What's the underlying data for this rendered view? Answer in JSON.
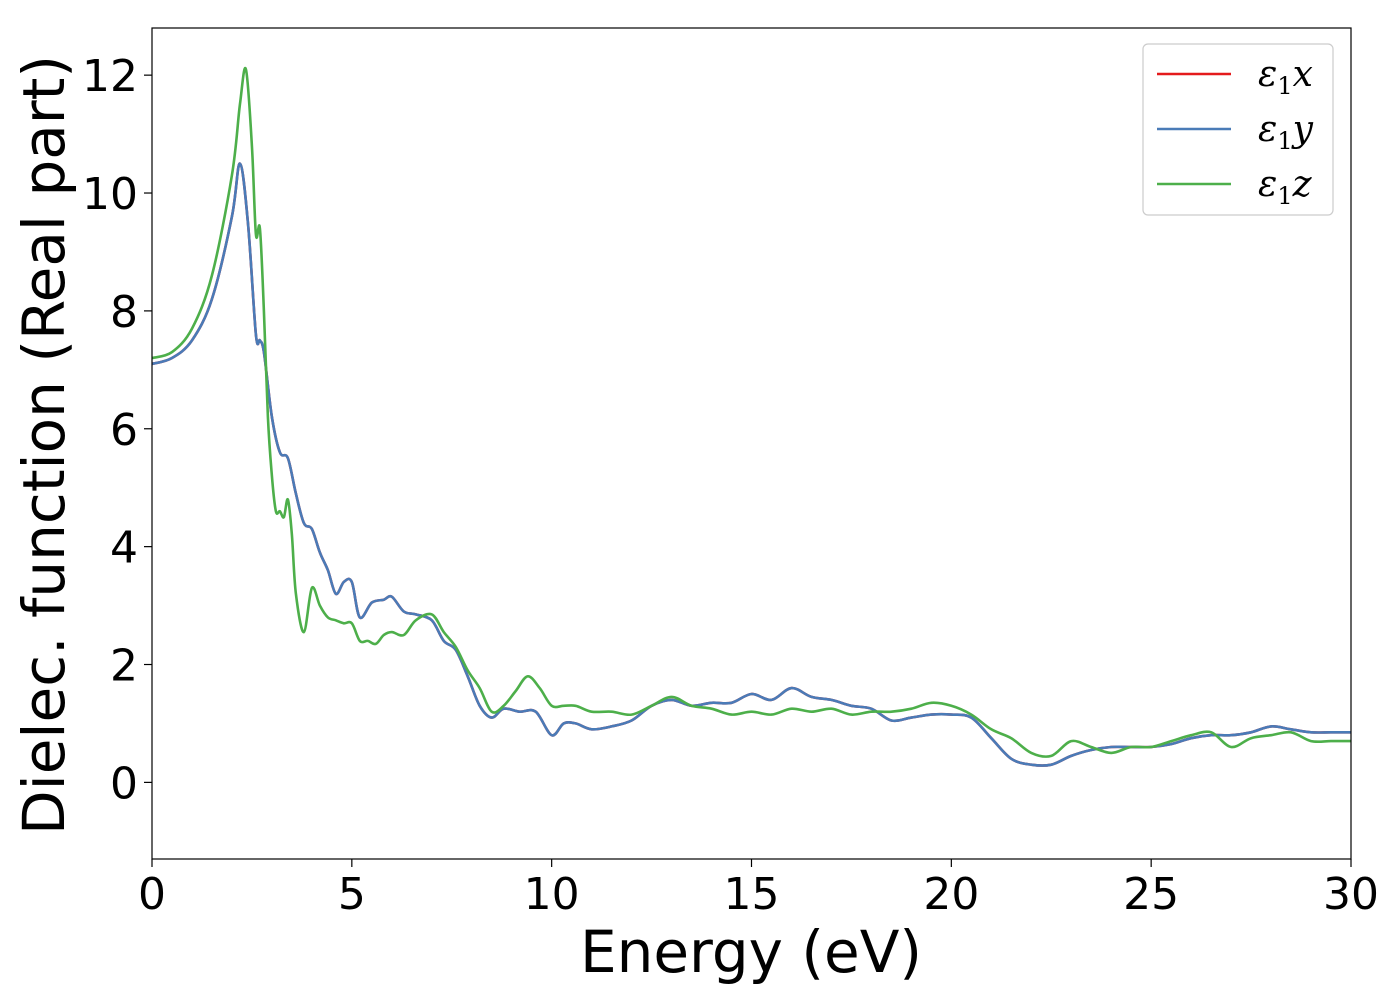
{
  "chart_data": {
    "type": "line",
    "title": "",
    "xlabel": "Energy (eV)",
    "ylabel": "Dielec. function (Real part)",
    "xlim": [
      0,
      30
    ],
    "ylim": [
      -1.3,
      12.8
    ],
    "xticks": [
      0,
      5,
      10,
      15,
      20,
      25,
      30
    ],
    "yticks": [
      0,
      2,
      4,
      6,
      8,
      10,
      12
    ],
    "grid": false,
    "legend_position": "top-right",
    "series": [
      {
        "name": "ε1x",
        "legend": {
          "base": "ε",
          "sub": "1",
          "var": "x"
        },
        "color": "#e41a1c",
        "hidden_behind": "ε1y",
        "x": [
          0,
          0.5,
          1.0,
          1.5,
          2.0,
          2.2,
          2.4,
          2.6,
          2.7,
          2.8,
          3.0,
          3.2,
          3.4,
          3.6,
          3.8,
          4.0,
          4.2,
          4.4,
          4.6,
          4.8,
          5.0,
          5.2,
          5.5,
          5.8,
          6.0,
          6.3,
          6.6,
          7.0,
          7.3,
          7.6,
          7.9,
          8.2,
          8.5,
          8.8,
          9.2,
          9.6,
          10.0,
          10.3,
          10.6,
          11.0,
          11.5,
          12.0,
          12.5,
          13.0,
          13.5,
          14.0,
          14.5,
          15.0,
          15.5,
          16.0,
          16.5,
          17.0,
          17.5,
          18.0,
          18.5,
          19.0,
          19.5,
          20.0,
          20.5,
          21.0,
          21.5,
          22.0,
          22.5,
          23.0,
          23.5,
          24.0,
          24.5,
          25.0,
          25.5,
          26.0,
          26.5,
          27.0,
          27.5,
          28.0,
          28.5,
          29.0,
          29.5,
          30.0
        ],
        "y": [
          7.1,
          7.2,
          7.5,
          8.2,
          9.6,
          10.5,
          9.5,
          7.6,
          7.5,
          7.3,
          6.2,
          5.6,
          5.5,
          4.9,
          4.4,
          4.3,
          3.9,
          3.6,
          3.2,
          3.4,
          3.4,
          2.8,
          3.05,
          3.1,
          3.15,
          2.9,
          2.85,
          2.75,
          2.4,
          2.25,
          1.8,
          1.3,
          1.1,
          1.25,
          1.2,
          1.2,
          0.8,
          1.0,
          1.0,
          0.9,
          0.95,
          1.05,
          1.3,
          1.4,
          1.3,
          1.35,
          1.35,
          1.5,
          1.4,
          1.6,
          1.45,
          1.4,
          1.3,
          1.25,
          1.05,
          1.1,
          1.15,
          1.15,
          1.1,
          0.75,
          0.4,
          0.3,
          0.3,
          0.45,
          0.55,
          0.6,
          0.6,
          0.6,
          0.65,
          0.75,
          0.8,
          0.8,
          0.85,
          0.95,
          0.9,
          0.85,
          0.85,
          0.85
        ]
      },
      {
        "name": "ε1y",
        "legend": {
          "base": "ε",
          "sub": "1",
          "var": "y"
        },
        "color": "#4a7bb7",
        "x": [
          0,
          0.5,
          1.0,
          1.5,
          2.0,
          2.2,
          2.4,
          2.6,
          2.7,
          2.8,
          3.0,
          3.2,
          3.4,
          3.6,
          3.8,
          4.0,
          4.2,
          4.4,
          4.6,
          4.8,
          5.0,
          5.2,
          5.5,
          5.8,
          6.0,
          6.3,
          6.6,
          7.0,
          7.3,
          7.6,
          7.9,
          8.2,
          8.5,
          8.8,
          9.2,
          9.6,
          10.0,
          10.3,
          10.6,
          11.0,
          11.5,
          12.0,
          12.5,
          13.0,
          13.5,
          14.0,
          14.5,
          15.0,
          15.5,
          16.0,
          16.5,
          17.0,
          17.5,
          18.0,
          18.5,
          19.0,
          19.5,
          20.0,
          20.5,
          21.0,
          21.5,
          22.0,
          22.5,
          23.0,
          23.5,
          24.0,
          24.5,
          25.0,
          25.5,
          26.0,
          26.5,
          27.0,
          27.5,
          28.0,
          28.5,
          29.0,
          29.5,
          30.0
        ],
        "y": [
          7.1,
          7.2,
          7.5,
          8.2,
          9.6,
          10.5,
          9.5,
          7.6,
          7.5,
          7.3,
          6.2,
          5.6,
          5.5,
          4.9,
          4.4,
          4.3,
          3.9,
          3.6,
          3.2,
          3.4,
          3.4,
          2.8,
          3.05,
          3.1,
          3.15,
          2.9,
          2.85,
          2.75,
          2.4,
          2.25,
          1.8,
          1.3,
          1.1,
          1.25,
          1.2,
          1.2,
          0.8,
          1.0,
          1.0,
          0.9,
          0.95,
          1.05,
          1.3,
          1.4,
          1.3,
          1.35,
          1.35,
          1.5,
          1.4,
          1.6,
          1.45,
          1.4,
          1.3,
          1.25,
          1.05,
          1.1,
          1.15,
          1.15,
          1.1,
          0.75,
          0.4,
          0.3,
          0.3,
          0.45,
          0.55,
          0.6,
          0.6,
          0.6,
          0.65,
          0.75,
          0.8,
          0.8,
          0.85,
          0.95,
          0.9,
          0.85,
          0.85,
          0.85
        ]
      },
      {
        "name": "ε1z",
        "legend": {
          "base": "ε",
          "sub": "1",
          "var": "z"
        },
        "color": "#4daf4a",
        "x": [
          0,
          0.5,
          1.0,
          1.5,
          2.0,
          2.2,
          2.35,
          2.5,
          2.6,
          2.7,
          2.8,
          2.9,
          3.0,
          3.1,
          3.2,
          3.3,
          3.4,
          3.5,
          3.6,
          3.8,
          4.0,
          4.2,
          4.4,
          4.6,
          4.8,
          5.0,
          5.2,
          5.4,
          5.6,
          5.8,
          6.0,
          6.3,
          6.6,
          7.0,
          7.3,
          7.6,
          7.9,
          8.2,
          8.5,
          8.8,
          9.1,
          9.4,
          9.7,
          10.0,
          10.3,
          10.6,
          11.0,
          11.5,
          12.0,
          12.5,
          13.0,
          13.5,
          14.0,
          14.5,
          15.0,
          15.5,
          16.0,
          16.5,
          17.0,
          17.5,
          18.0,
          18.5,
          19.0,
          19.5,
          20.0,
          20.5,
          21.0,
          21.5,
          22.0,
          22.5,
          23.0,
          23.5,
          24.0,
          24.5,
          25.0,
          25.5,
          26.0,
          26.5,
          27.0,
          27.5,
          28.0,
          28.5,
          29.0,
          29.5,
          30.0
        ],
        "y": [
          7.2,
          7.3,
          7.7,
          8.6,
          10.3,
          11.5,
          12.1,
          10.8,
          9.3,
          9.4,
          8.0,
          6.2,
          5.2,
          4.6,
          4.6,
          4.5,
          4.8,
          4.2,
          3.2,
          2.55,
          3.3,
          3.0,
          2.8,
          2.75,
          2.7,
          2.7,
          2.4,
          2.4,
          2.35,
          2.5,
          2.55,
          2.5,
          2.75,
          2.85,
          2.55,
          2.3,
          1.9,
          1.6,
          1.2,
          1.3,
          1.55,
          1.8,
          1.6,
          1.3,
          1.3,
          1.3,
          1.2,
          1.2,
          1.15,
          1.3,
          1.45,
          1.3,
          1.25,
          1.15,
          1.2,
          1.15,
          1.25,
          1.2,
          1.25,
          1.15,
          1.2,
          1.2,
          1.25,
          1.35,
          1.3,
          1.15,
          0.9,
          0.75,
          0.5,
          0.45,
          0.7,
          0.6,
          0.5,
          0.6,
          0.6,
          0.7,
          0.8,
          0.85,
          0.6,
          0.75,
          0.8,
          0.85,
          0.7,
          0.7,
          0.7
        ]
      }
    ]
  }
}
